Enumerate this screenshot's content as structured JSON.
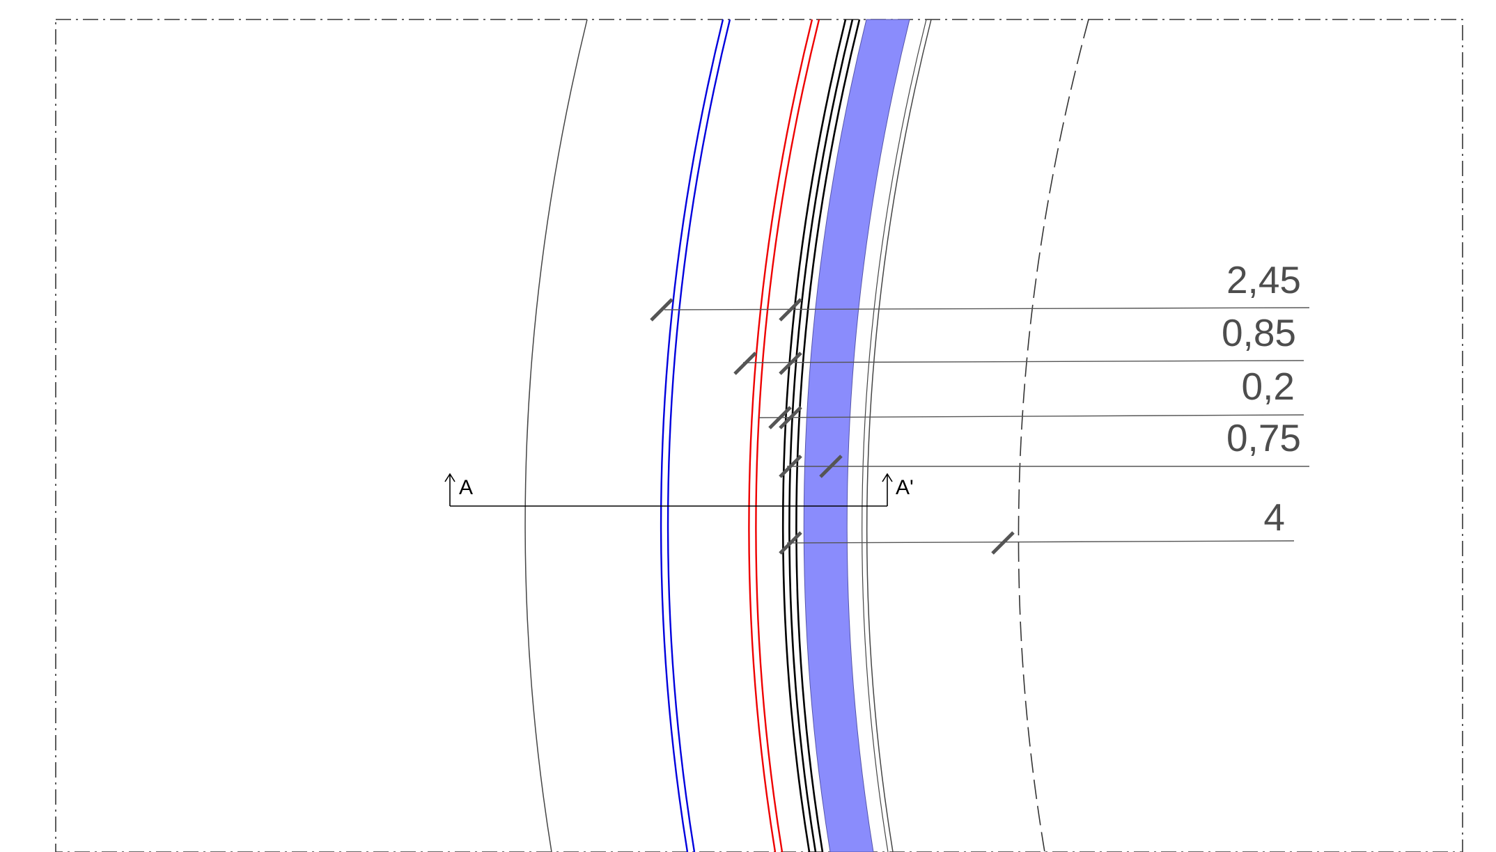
{
  "section": {
    "start_label": "A",
    "end_label": "A'"
  },
  "dimensions": [
    {
      "id": "dim-1",
      "label": "2,45"
    },
    {
      "id": "dim-2",
      "label": "0,85"
    },
    {
      "id": "dim-3",
      "label": "0,2"
    },
    {
      "id": "dim-4",
      "label": "0,75"
    },
    {
      "id": "dim-5",
      "label": "4"
    }
  ],
  "colors": {
    "background": "#ffffff",
    "frame": "#333333",
    "blue_line": "#0000dd",
    "red_line": "#ee0000",
    "black_line": "#000000",
    "band_fill": "#8a8cfc",
    "thin_arc": "#444444",
    "leader": "#555555",
    "tick": "#555555",
    "dim_text": "#4d4d4d"
  }
}
